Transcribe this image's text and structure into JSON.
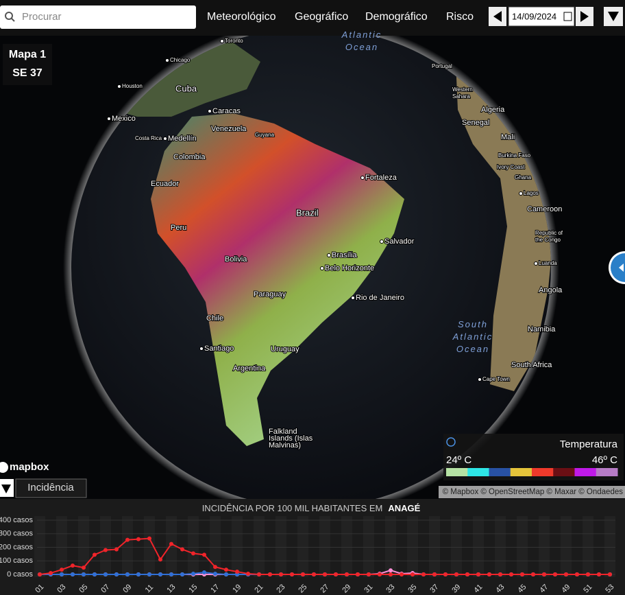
{
  "search": {
    "placeholder": "Procurar"
  },
  "nav": [
    "Meteorológico",
    "Geográfico",
    "Demográfico",
    "Risco"
  ],
  "date": "14/09/2024",
  "map": {
    "panel": [
      "Mapa 1",
      "SE 37"
    ],
    "labels": [
      "Toronto",
      "Chicago",
      "Houston",
      "Cuba",
      "Mexico",
      "Caracas",
      "Venezuela",
      "Guyana",
      "Costa Rica",
      "Medellín",
      "Colombia",
      "Ecuador",
      "Peru",
      "Brazil",
      "Fortaleza",
      "Salvador",
      "Brasília",
      "Belo Horizonte",
      "Rio de Janeiro",
      "Bolivia",
      "Paraguay",
      "Chile",
      "Santiago",
      "Uruguay",
      "Argentina",
      [
        "Falkland",
        "Islands (Islas",
        "Malvinas)"
      ],
      "Portugal",
      [
        "Western",
        "Sahara"
      ],
      "Algeria",
      "Senegal",
      "Mali",
      "Burkina Faso",
      "Ivory Coast",
      "Ghana",
      "Lagos",
      "Cameroon",
      [
        "Republic of",
        "the Congo"
      ],
      "Luanda",
      "Angola",
      "Namibia",
      "South Africa",
      "Cape Town",
      [
        "Atlantic",
        "Ocean"
      ],
      [
        "South",
        "Atlantic",
        "Ocean"
      ]
    ],
    "logo": "mapbox",
    "layer_select": "Incidência",
    "attribution": "© Mapbox © OpenStreetMap © Maxar © Ondaedes",
    "legend": {
      "title": "Temperatura",
      "min": "24º C",
      "max": "46º C",
      "colors": [
        "#b6e3a4",
        "#2ee6e6",
        "#2851a3",
        "#e5c43a",
        "#f03a2b",
        "#6b0f14",
        "#c01ae8",
        "#b77cc6"
      ]
    }
  },
  "chart_data": {
    "type": "line",
    "title": "INCIDÊNCIA POR 100 MIL HABITANTES EM",
    "title_place": "ANAGÉ",
    "categories": [
      "01",
      null,
      "03",
      null,
      "05",
      null,
      "07",
      null,
      "09",
      null,
      "11",
      null,
      "13",
      null,
      "15",
      null,
      "17",
      null,
      "19",
      null,
      "21",
      null,
      "23",
      null,
      "25",
      null,
      "27",
      null,
      "29",
      null,
      "31",
      null,
      "33",
      null,
      "35",
      null,
      "37",
      null,
      "39",
      null,
      "41",
      null,
      "43",
      null,
      "45",
      null,
      "47",
      null,
      "49",
      null,
      "51",
      null,
      "53"
    ],
    "ylim": [
      0,
      400
    ],
    "yticks": [
      {
        "value": 0,
        "label": "0 casos"
      },
      {
        "value": 100,
        "label": "100 casos"
      },
      {
        "value": 200,
        "label": "200 casos"
      },
      {
        "value": 300,
        "label": "300 casos"
      },
      {
        "value": 400,
        "label": "400 casos"
      }
    ],
    "grid": true,
    "series": [
      {
        "color": "#f0d020",
        "values": [
          0,
          0,
          0,
          0,
          0,
          0,
          0,
          0,
          0,
          0,
          0,
          0,
          0,
          0,
          0,
          0,
          0,
          0,
          0,
          0,
          0,
          0,
          0,
          0,
          0,
          0,
          0,
          0,
          0,
          0,
          0,
          0,
          0,
          0,
          0,
          0,
          0,
          0,
          0,
          0,
          0,
          0,
          0,
          0,
          0,
          0,
          0,
          0,
          0,
          0,
          0,
          0,
          0
        ]
      },
      {
        "color": "#ff8fd8",
        "values": [
          0,
          0,
          0,
          0,
          0,
          0,
          0,
          0,
          0,
          0,
          0,
          0,
          0,
          0,
          0,
          0,
          0,
          0,
          0,
          0,
          0,
          0,
          0,
          0,
          0,
          0,
          0,
          0,
          0,
          0,
          0,
          5,
          30,
          5,
          10,
          0,
          0,
          0,
          0,
          0,
          0,
          0,
          0,
          0,
          0,
          0,
          0,
          0,
          0,
          0,
          0,
          0,
          0
        ]
      },
      {
        "color": "#2f6fd6",
        "values": [
          0,
          0,
          0,
          0,
          0,
          0,
          0,
          0,
          0,
          0,
          0,
          0,
          0,
          0,
          5,
          15,
          5,
          0,
          0,
          0,
          0,
          0,
          0,
          0,
          0,
          0,
          0,
          0,
          0,
          0,
          0,
          0,
          0,
          0,
          0,
          0,
          0,
          0,
          0,
          0,
          0,
          0,
          0,
          0,
          0,
          0,
          0,
          0,
          0,
          0,
          0,
          0,
          0
        ]
      },
      {
        "color": "#f0242a",
        "values": [
          0,
          10,
          35,
          65,
          50,
          145,
          180,
          185,
          255,
          260,
          265,
          110,
          225,
          185,
          155,
          145,
          55,
          35,
          20,
          5,
          0,
          0,
          0,
          0,
          0,
          0,
          0,
          0,
          0,
          0,
          0,
          0,
          0,
          0,
          0,
          0,
          0,
          0,
          0,
          0,
          0,
          0,
          0,
          0,
          0,
          0,
          0,
          0,
          0,
          0,
          0,
          0,
          0
        ]
      }
    ]
  }
}
